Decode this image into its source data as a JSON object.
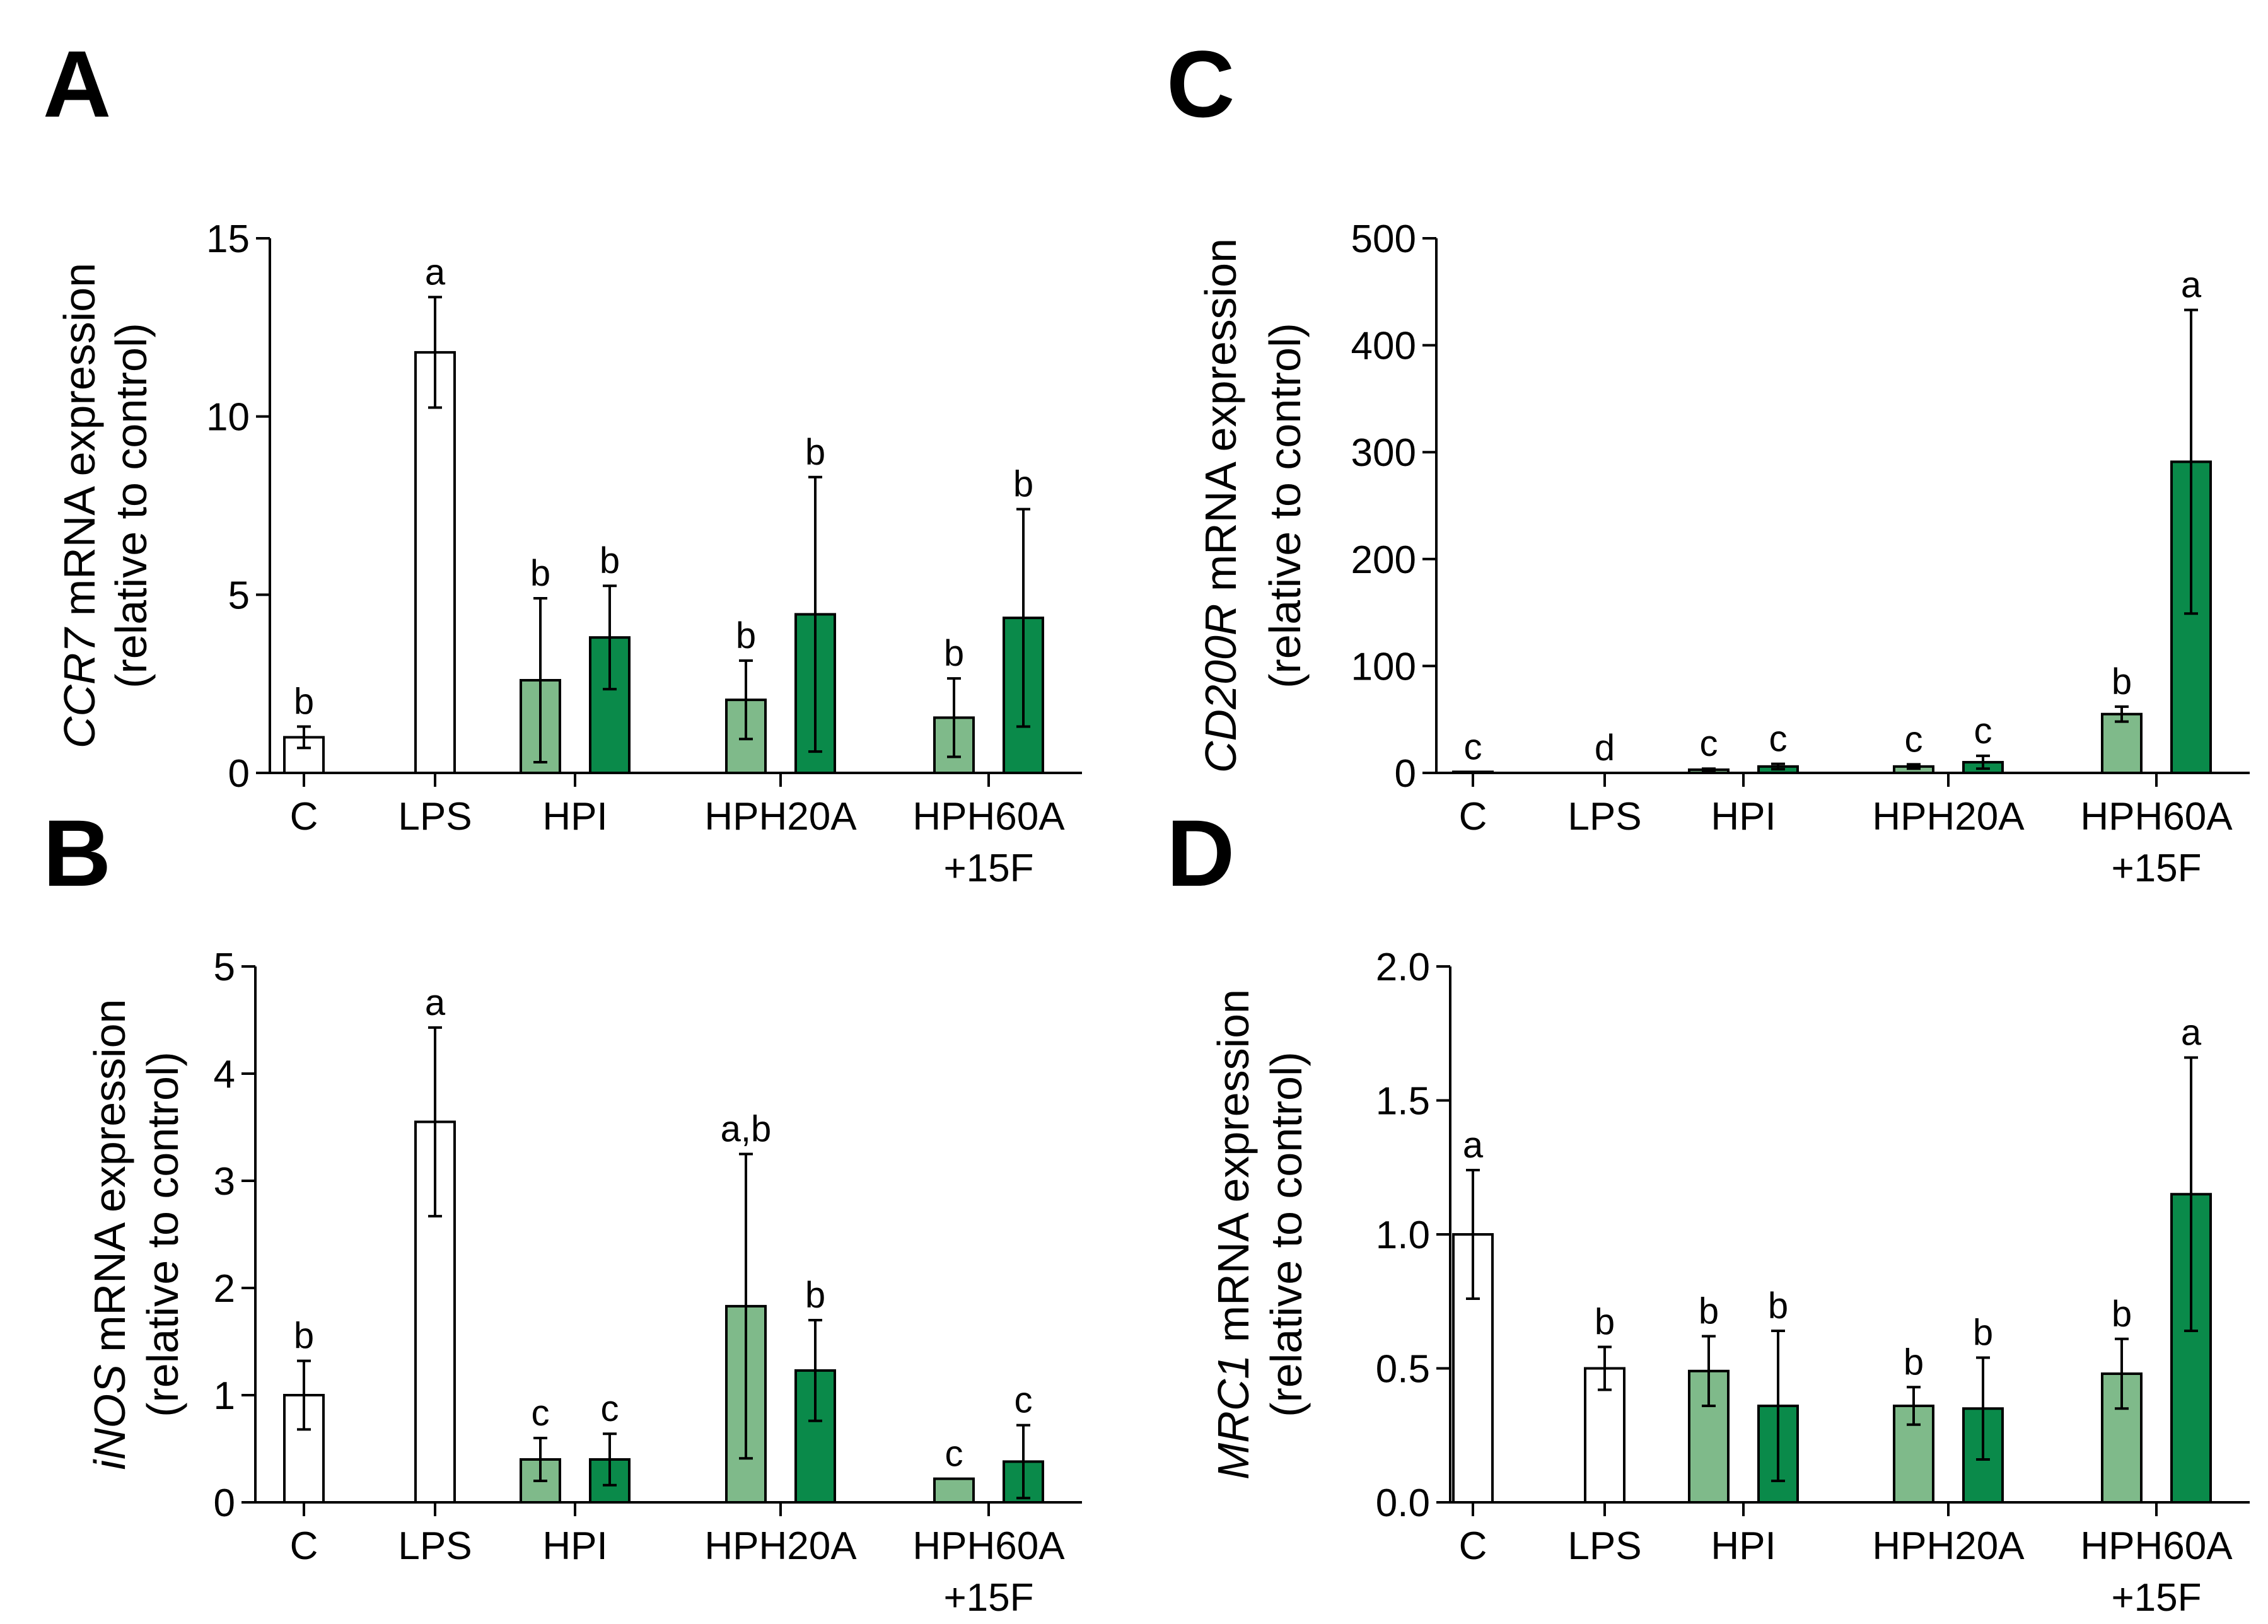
{
  "colors": {
    "control": "#ffffff",
    "light_green": "#7fba8a",
    "dark_green": "#0a8a4a",
    "outline": "#000000"
  },
  "chart_data": [
    {
      "id": "A",
      "panel_label": "A",
      "type": "bar",
      "title": "",
      "ylabel_gene": "CCR7",
      "ylabel_rest": " mRNA expression",
      "ylabel_line2": "(relative to control)",
      "ylim": [
        0,
        15
      ],
      "yticks": [
        "0",
        "5",
        "10",
        "15"
      ],
      "ytick_values": [
        0,
        5,
        10,
        15
      ],
      "groups": [
        {
          "label": "C",
          "label2": ""
        },
        {
          "label": "LPS",
          "label2": ""
        },
        {
          "label": "HPI",
          "label2": ""
        },
        {
          "label": "HPH20A",
          "label2": ""
        },
        {
          "label": "HPH60A",
          "label2": "+15F"
        }
      ],
      "bars": [
        {
          "group": 0,
          "slot": "single",
          "color": "control",
          "value": 1.0,
          "err": 0.3,
          "sig": "b"
        },
        {
          "group": 1,
          "slot": "single",
          "color": "control",
          "value": 11.8,
          "err": 1.55,
          "sig": "a"
        },
        {
          "group": 2,
          "slot": "left",
          "color": "light_green",
          "value": 2.6,
          "err": 2.3,
          "sig": "b"
        },
        {
          "group": 2,
          "slot": "right",
          "color": "dark_green",
          "value": 3.8,
          "err": 1.45,
          "sig": "b"
        },
        {
          "group": 3,
          "slot": "left",
          "color": "light_green",
          "value": 2.05,
          "err": 1.1,
          "sig": "b"
        },
        {
          "group": 3,
          "slot": "right",
          "color": "dark_green",
          "value": 4.45,
          "err": 3.85,
          "sig": "b"
        },
        {
          "group": 4,
          "slot": "left",
          "color": "light_green",
          "value": 1.55,
          "err": 1.1,
          "sig": "b"
        },
        {
          "group": 4,
          "slot": "right",
          "color": "dark_green",
          "value": 4.35,
          "err": 3.05,
          "sig": "b"
        }
      ]
    },
    {
      "id": "C",
      "panel_label": "C",
      "type": "bar",
      "title": "",
      "ylabel_gene": "CD200R",
      "ylabel_rest": " mRNA expression",
      "ylabel_line2": "(relative to control)",
      "ylim": [
        0,
        500
      ],
      "yticks": [
        "0",
        "100",
        "200",
        "300",
        "400",
        "500"
      ],
      "ytick_values": [
        0,
        100,
        200,
        300,
        400,
        500
      ],
      "groups": [
        {
          "label": "C",
          "label2": ""
        },
        {
          "label": "LPS",
          "label2": ""
        },
        {
          "label": "HPI",
          "label2": ""
        },
        {
          "label": "HPH20A",
          "label2": ""
        },
        {
          "label": "HPH60A",
          "label2": "+15F"
        }
      ],
      "bars": [
        {
          "group": 0,
          "slot": "single",
          "color": "control",
          "value": 1,
          "err": 0,
          "sig": "c"
        },
        {
          "group": 1,
          "slot": "single",
          "color": "control",
          "value": 0,
          "err": 0,
          "sig": "d"
        },
        {
          "group": 2,
          "slot": "left",
          "color": "light_green",
          "value": 3,
          "err": 1,
          "sig": "c"
        },
        {
          "group": 2,
          "slot": "right",
          "color": "dark_green",
          "value": 6,
          "err": 2.5,
          "sig": "c"
        },
        {
          "group": 3,
          "slot": "left",
          "color": "light_green",
          "value": 6,
          "err": 2,
          "sig": "c"
        },
        {
          "group": 3,
          "slot": "right",
          "color": "dark_green",
          "value": 10,
          "err": 6,
          "sig": "c"
        },
        {
          "group": 4,
          "slot": "left",
          "color": "light_green",
          "value": 55,
          "err": 7,
          "sig": "b"
        },
        {
          "group": 4,
          "slot": "right",
          "color": "dark_green",
          "value": 291,
          "err": 142,
          "sig": "a"
        }
      ]
    },
    {
      "id": "B",
      "panel_label": "B",
      "type": "bar",
      "title": "",
      "ylabel_gene": "iNOS",
      "ylabel_rest": " mRNA expression",
      "ylabel_line2": "(relative to control)",
      "ylim": [
        0,
        5
      ],
      "yticks": [
        "0",
        "1",
        "2",
        "3",
        "4",
        "5"
      ],
      "ytick_values": [
        0,
        1,
        2,
        3,
        4,
        5
      ],
      "groups": [
        {
          "label": "C",
          "label2": ""
        },
        {
          "label": "LPS",
          "label2": ""
        },
        {
          "label": "HPI",
          "label2": ""
        },
        {
          "label": "HPH20A",
          "label2": ""
        },
        {
          "label": "HPH60A",
          "label2": "+15F"
        }
      ],
      "bars": [
        {
          "group": 0,
          "slot": "single",
          "color": "control",
          "value": 1.0,
          "err": 0.32,
          "sig": "b"
        },
        {
          "group": 1,
          "slot": "single",
          "color": "control",
          "value": 3.55,
          "err": 0.88,
          "sig": "a"
        },
        {
          "group": 2,
          "slot": "left",
          "color": "light_green",
          "value": 0.4,
          "err": 0.2,
          "sig": "c"
        },
        {
          "group": 2,
          "slot": "right",
          "color": "dark_green",
          "value": 0.4,
          "err": 0.24,
          "sig": "c"
        },
        {
          "group": 3,
          "slot": "left",
          "color": "light_green",
          "value": 1.83,
          "err": 1.42,
          "sig": "a,b"
        },
        {
          "group": 3,
          "slot": "right",
          "color": "dark_green",
          "value": 1.23,
          "err": 0.47,
          "sig": "b"
        },
        {
          "group": 4,
          "slot": "left",
          "color": "light_green",
          "value": 0.22,
          "err": 0,
          "sig": "c"
        },
        {
          "group": 4,
          "slot": "right",
          "color": "dark_green",
          "value": 0.38,
          "err": 0.34,
          "sig": "c"
        }
      ]
    },
    {
      "id": "D",
      "panel_label": "D",
      "type": "bar",
      "title": "",
      "ylabel_gene": "MRC1",
      "ylabel_rest": " mRNA expression",
      "ylabel_line2": "(relative to control)",
      "ylim": [
        0,
        2.0
      ],
      "yticks": [
        "0.0",
        "0.5",
        "1.0",
        "1.5",
        "2.0"
      ],
      "ytick_values": [
        0,
        0.5,
        1.0,
        1.5,
        2.0
      ],
      "groups": [
        {
          "label": "C",
          "label2": ""
        },
        {
          "label": "LPS",
          "label2": ""
        },
        {
          "label": "HPI",
          "label2": ""
        },
        {
          "label": "HPH20A",
          "label2": ""
        },
        {
          "label": "HPH60A",
          "label2": "+15F"
        }
      ],
      "bars": [
        {
          "group": 0,
          "slot": "single",
          "color": "control",
          "value": 1.0,
          "err": 0.24,
          "sig": "a"
        },
        {
          "group": 1,
          "slot": "single",
          "color": "control",
          "value": 0.5,
          "err": 0.08,
          "sig": "b"
        },
        {
          "group": 2,
          "slot": "left",
          "color": "light_green",
          "value": 0.49,
          "err": 0.13,
          "sig": "b"
        },
        {
          "group": 2,
          "slot": "right",
          "color": "dark_green",
          "value": 0.36,
          "err": 0.28,
          "sig": "b"
        },
        {
          "group": 3,
          "slot": "left",
          "color": "light_green",
          "value": 0.36,
          "err": 0.07,
          "sig": "b"
        },
        {
          "group": 3,
          "slot": "right",
          "color": "dark_green",
          "value": 0.35,
          "err": 0.19,
          "sig": "b"
        },
        {
          "group": 4,
          "slot": "left",
          "color": "light_green",
          "value": 0.48,
          "err": 0.13,
          "sig": "b"
        },
        {
          "group": 4,
          "slot": "right",
          "color": "dark_green",
          "value": 1.15,
          "err": 0.51,
          "sig": "a"
        }
      ]
    }
  ]
}
